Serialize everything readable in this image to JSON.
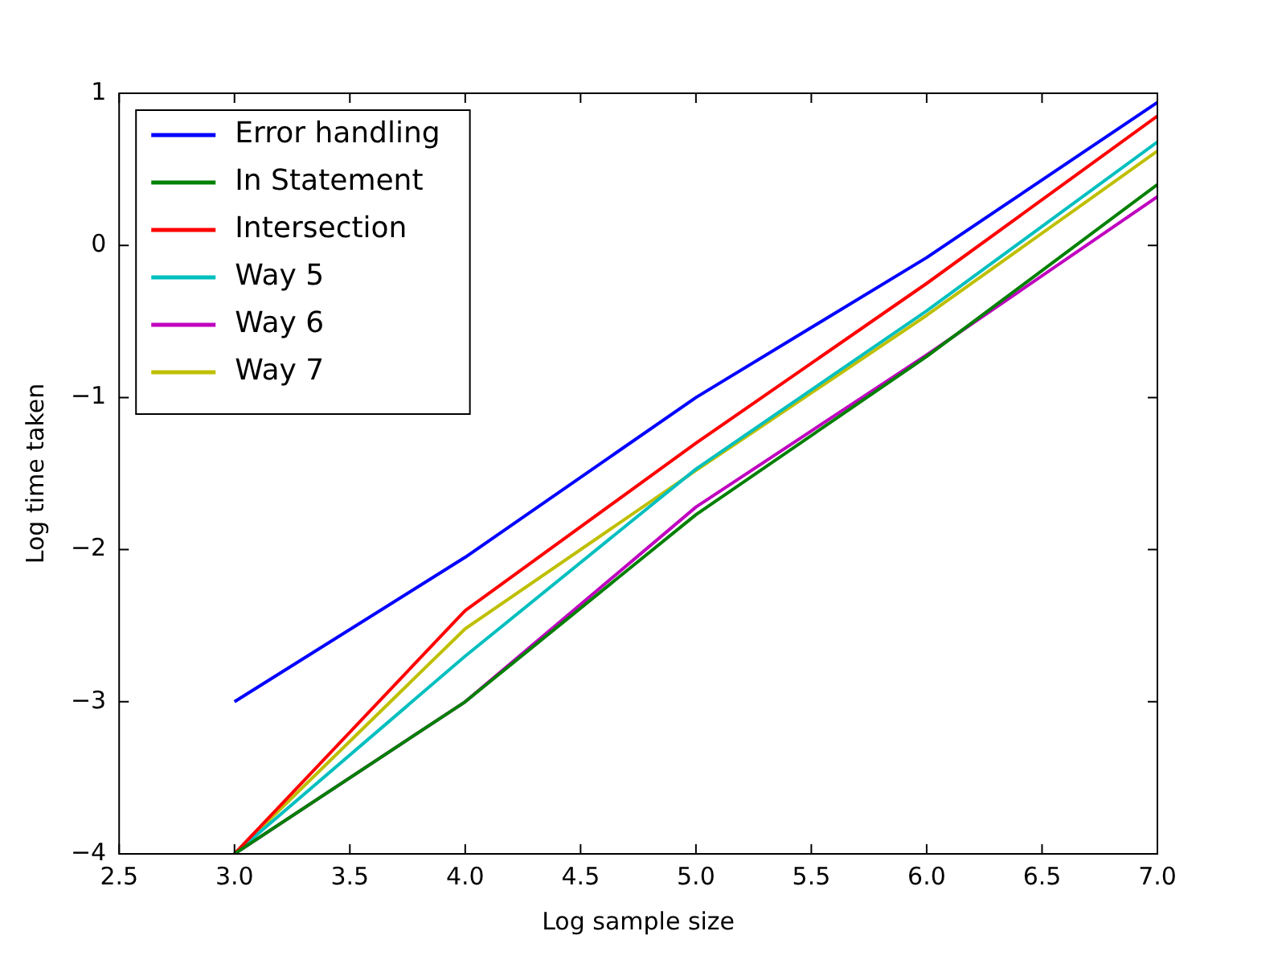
{
  "chart_data": {
    "type": "line",
    "xlabel": "Log sample size",
    "ylabel": "Log time taken",
    "x": [
      3,
      4,
      5,
      6,
      7
    ],
    "series": [
      {
        "name": "Error handling",
        "color": "#0000ff",
        "values": [
          -3,
          -2.05,
          -1.0,
          -0.08,
          0.94
        ]
      },
      {
        "name": "In Statement",
        "color": "#008000",
        "values": [
          -4,
          -3.0,
          -1.77,
          -0.73,
          0.4
        ]
      },
      {
        "name": "Intersection",
        "color": "#ff0000",
        "values": [
          -4,
          -2.4,
          -1.3,
          -0.25,
          0.85
        ]
      },
      {
        "name": "Way 5",
        "color": "#00bfbf",
        "values": [
          -4,
          -2.7,
          -1.47,
          -0.43,
          0.68
        ]
      },
      {
        "name": "Way 6",
        "color": "#bf00bf",
        "values": [
          -4,
          -3.0,
          -1.72,
          -0.72,
          0.32
        ]
      },
      {
        "name": "Way 7",
        "color": "#bfbf00",
        "values": [
          -4,
          -2.52,
          -1.48,
          -0.46,
          0.62
        ]
      }
    ],
    "xlim": [
      2.5,
      7.0
    ],
    "xticks": [
      {
        "value": 2.5,
        "label": "2.5"
      },
      {
        "value": 3,
        "label": "3.0"
      },
      {
        "value": 3.5,
        "label": "3.5"
      },
      {
        "value": 4,
        "label": "4.0"
      },
      {
        "value": 4.5,
        "label": "4.5"
      },
      {
        "value": 5,
        "label": "5.0"
      },
      {
        "value": 5.5,
        "label": "5.5"
      },
      {
        "value": 6,
        "label": "6.0"
      },
      {
        "value": 6.5,
        "label": "6.5"
      },
      {
        "value": 7,
        "label": "7.0"
      }
    ],
    "ylim": [
      -4,
      1
    ],
    "yticks": [
      {
        "value": -4,
        "label": "−4"
      },
      {
        "value": -3,
        "label": "−3"
      },
      {
        "value": -2,
        "label": "−2"
      },
      {
        "value": -1,
        "label": "−1"
      },
      0,
      1
    ],
    "grid": false,
    "legend": "top left",
    "marker": "none",
    "line_style": "solid"
  }
}
